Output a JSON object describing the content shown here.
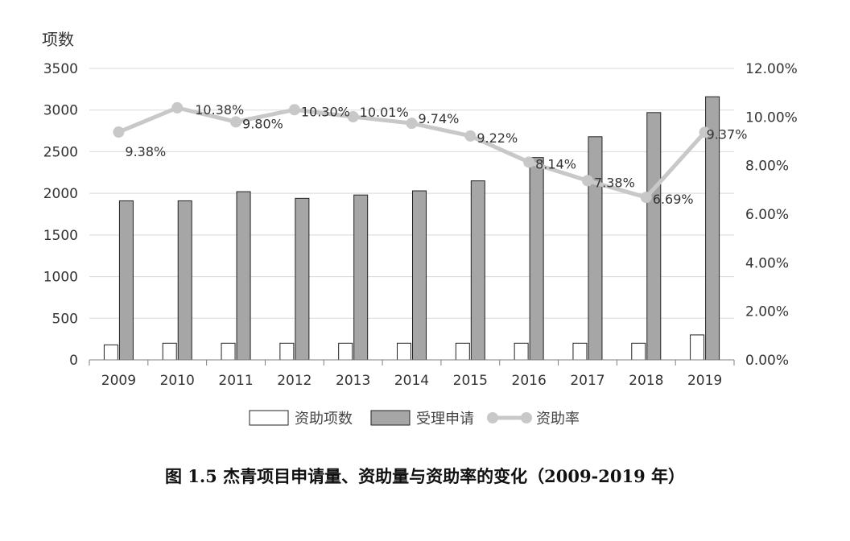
{
  "chart_data": {
    "type": "bar",
    "categories": [
      "2009",
      "2010",
      "2011",
      "2012",
      "2013",
      "2014",
      "2015",
      "2016",
      "2017",
      "2018",
      "2019"
    ],
    "ylabel": "项数",
    "ylim": [
      0,
      3500
    ],
    "yticks": [
      "0",
      "500",
      "1000",
      "1500",
      "2000",
      "2500",
      "3000",
      "3500"
    ],
    "y2lim": [
      0,
      12
    ],
    "y2ticks": [
      "0.00%",
      "2.00%",
      "4.00%",
      "6.00%",
      "8.00%",
      "10.00%",
      "12.00%"
    ],
    "grid": true,
    "legend_position": "bottom",
    "series": [
      {
        "name": "资助项数",
        "type": "bar",
        "color": "#ffffff",
        "values": [
          180,
          200,
          200,
          200,
          200,
          200,
          200,
          200,
          200,
          200,
          300
        ]
      },
      {
        "name": "受理申请",
        "type": "bar",
        "color": "#a6a6a6",
        "values": [
          1910,
          1910,
          2020,
          1940,
          1980,
          2030,
          2150,
          2430,
          2680,
          2970,
          3160
        ]
      },
      {
        "name": "资助率",
        "type": "line",
        "axis": "right",
        "color": "#c8c8c8",
        "values": [
          9.38,
          10.38,
          9.8,
          10.3,
          10.01,
          9.74,
          9.22,
          8.14,
          7.38,
          6.69,
          9.37
        ],
        "labels": [
          "9.38%",
          "10.38%",
          "9.80%",
          "10.30%",
          "10.01%",
          "9.74%",
          "9.22%",
          "8.14%",
          "7.38%",
          "6.69%",
          "9.37%"
        ]
      }
    ]
  },
  "caption": "图 1.5  杰青项目申请量、资助量与资助率的变化（2009-2019 年）"
}
